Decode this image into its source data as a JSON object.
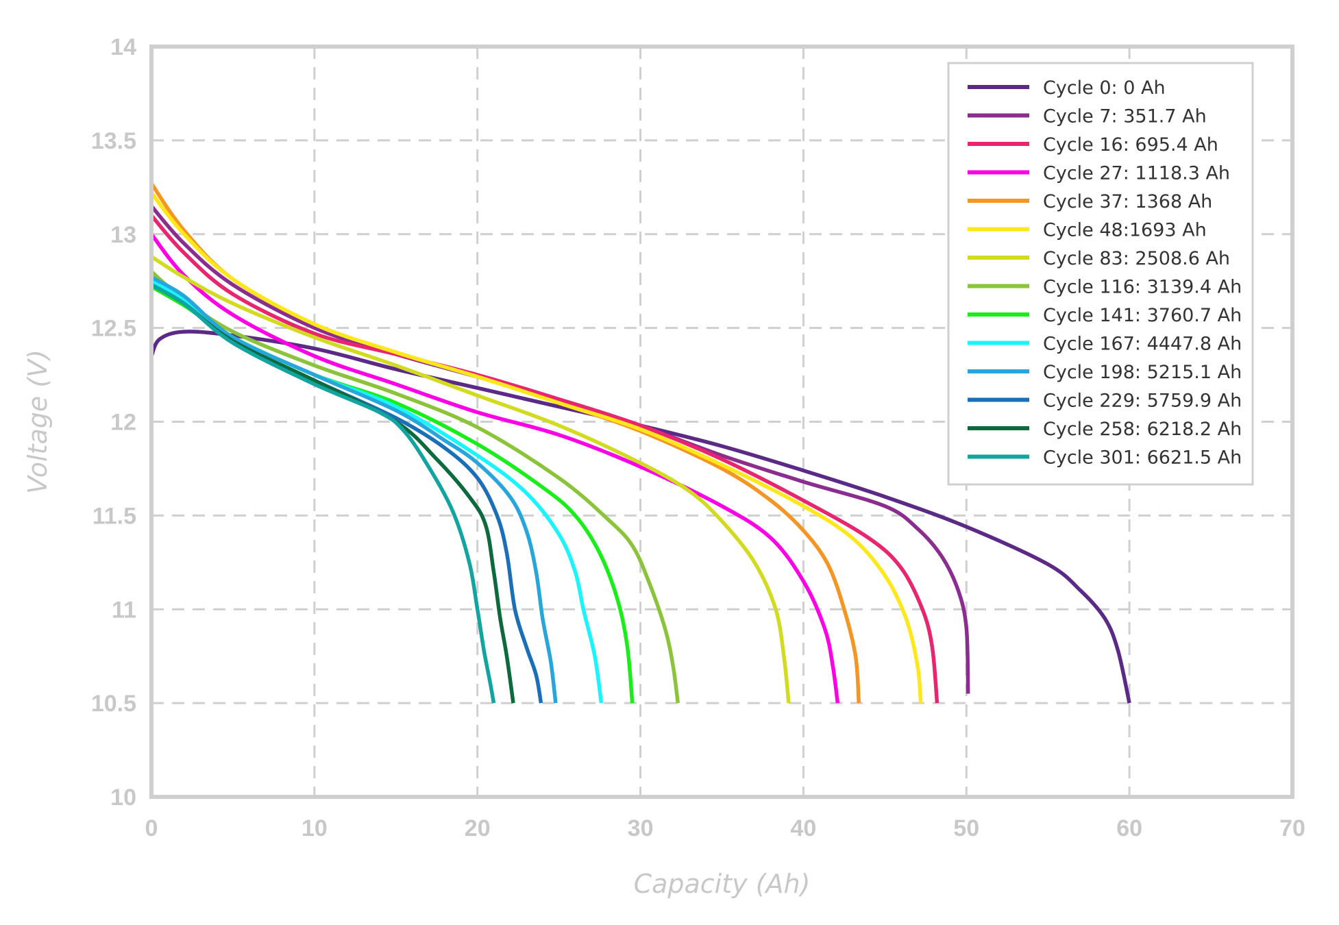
{
  "chart_data": {
    "type": "line",
    "title": "",
    "xlabel": "Capacity (Ah)",
    "ylabel": "Voltage (V)",
    "xlim": [
      0,
      70
    ],
    "ylim": [
      10,
      14
    ],
    "x_ticks": [
      0,
      10,
      20,
      30,
      40,
      50,
      60,
      70
    ],
    "y_ticks": [
      10,
      10.5,
      11,
      11.5,
      12,
      12.5,
      13,
      13.5,
      14
    ],
    "x_tick_labels": [
      "0",
      "10",
      "20",
      "30",
      "40",
      "50",
      "60",
      "70"
    ],
    "y_tick_labels": [
      "10",
      "10.5",
      "11",
      "11.5",
      "12",
      "12.5",
      "13",
      "13.5",
      "14"
    ],
    "grid": true,
    "legend_position": "top-right",
    "series": [
      {
        "name": "Cycle 0: 0 Ah",
        "color": "#5b2a86",
        "points": [
          [
            0,
            12.35
          ],
          [
            0.5,
            12.44
          ],
          [
            2,
            12.48
          ],
          [
            5,
            12.46
          ],
          [
            10,
            12.39
          ],
          [
            15,
            12.28
          ],
          [
            20,
            12.18
          ],
          [
            25,
            12.08
          ],
          [
            30,
            11.98
          ],
          [
            35,
            11.87
          ],
          [
            40,
            11.74
          ],
          [
            45,
            11.6
          ],
          [
            50,
            11.44
          ],
          [
            55,
            11.24
          ],
          [
            57,
            11.1
          ],
          [
            58.5,
            10.95
          ],
          [
            59.3,
            10.78
          ],
          [
            60,
            10.5
          ]
        ]
      },
      {
        "name": "Cycle 7: 351.7 Ah",
        "color": "#8b2d8f",
        "points": [
          [
            0,
            13.15
          ],
          [
            2,
            12.95
          ],
          [
            5,
            12.73
          ],
          [
            10,
            12.5
          ],
          [
            15,
            12.36
          ],
          [
            20,
            12.24
          ],
          [
            25,
            12.12
          ],
          [
            30,
            11.98
          ],
          [
            35,
            11.82
          ],
          [
            40,
            11.68
          ],
          [
            45,
            11.55
          ],
          [
            47,
            11.43
          ],
          [
            48.5,
            11.28
          ],
          [
            49.5,
            11.1
          ],
          [
            50,
            10.9
          ],
          [
            50.1,
            10.55
          ]
        ]
      },
      {
        "name": "Cycle 16: 695.4 Ah",
        "color": "#e8256e",
        "points": [
          [
            0,
            13.1
          ],
          [
            2,
            12.9
          ],
          [
            5,
            12.68
          ],
          [
            10,
            12.47
          ],
          [
            15,
            12.36
          ],
          [
            20,
            12.25
          ],
          [
            25,
            12.12
          ],
          [
            30,
            11.98
          ],
          [
            35,
            11.8
          ],
          [
            40,
            11.58
          ],
          [
            44,
            11.38
          ],
          [
            46,
            11.22
          ],
          [
            47.3,
            11.0
          ],
          [
            47.9,
            10.8
          ],
          [
            48.2,
            10.5
          ]
        ]
      },
      {
        "name": "Cycle 27: 1118.3 Ah",
        "color": "#ff00e6",
        "points": [
          [
            0,
            13.0
          ],
          [
            2,
            12.78
          ],
          [
            5,
            12.57
          ],
          [
            10,
            12.35
          ],
          [
            15,
            12.2
          ],
          [
            20,
            12.05
          ],
          [
            25,
            11.93
          ],
          [
            30,
            11.76
          ],
          [
            35,
            11.55
          ],
          [
            38,
            11.38
          ],
          [
            40,
            11.15
          ],
          [
            41.3,
            10.9
          ],
          [
            41.8,
            10.7
          ],
          [
            42.1,
            10.5
          ]
        ]
      },
      {
        "name": "Cycle 37: 1368 Ah",
        "color": "#f59523",
        "points": [
          [
            0,
            13.27
          ],
          [
            2,
            13.02
          ],
          [
            5,
            12.76
          ],
          [
            10,
            12.52
          ],
          [
            15,
            12.37
          ],
          [
            20,
            12.24
          ],
          [
            25,
            12.1
          ],
          [
            30,
            11.95
          ],
          [
            35,
            11.75
          ],
          [
            38,
            11.58
          ],
          [
            40,
            11.42
          ],
          [
            41.5,
            11.24
          ],
          [
            42.5,
            11.0
          ],
          [
            43.2,
            10.75
          ],
          [
            43.4,
            10.5
          ]
        ]
      },
      {
        "name": "Cycle 48:1693 Ah",
        "color": "#ffe81a",
        "points": [
          [
            0,
            13.22
          ],
          [
            2,
            13.0
          ],
          [
            5,
            12.76
          ],
          [
            10,
            12.52
          ],
          [
            15,
            12.37
          ],
          [
            20,
            12.24
          ],
          [
            25,
            12.1
          ],
          [
            30,
            11.96
          ],
          [
            35,
            11.77
          ],
          [
            40,
            11.55
          ],
          [
            43,
            11.38
          ],
          [
            45,
            11.18
          ],
          [
            46.3,
            10.95
          ],
          [
            47,
            10.7
          ],
          [
            47.2,
            10.5
          ]
        ]
      },
      {
        "name": "Cycle 83: 2508.6 Ah",
        "color": "#d2db20",
        "points": [
          [
            0,
            12.88
          ],
          [
            2,
            12.77
          ],
          [
            5,
            12.63
          ],
          [
            10,
            12.45
          ],
          [
            15,
            12.3
          ],
          [
            20,
            12.14
          ],
          [
            25,
            11.98
          ],
          [
            30,
            11.78
          ],
          [
            33,
            11.63
          ],
          [
            35,
            11.47
          ],
          [
            37,
            11.25
          ],
          [
            38.3,
            11.0
          ],
          [
            38.8,
            10.75
          ],
          [
            39.1,
            10.5
          ]
        ]
      },
      {
        "name": "Cycle 116: 3139.4 Ah",
        "color": "#8bc43a",
        "points": [
          [
            0,
            12.8
          ],
          [
            2,
            12.65
          ],
          [
            5,
            12.48
          ],
          [
            10,
            12.3
          ],
          [
            15,
            12.15
          ],
          [
            20,
            11.97
          ],
          [
            25,
            11.7
          ],
          [
            28,
            11.48
          ],
          [
            29.5,
            11.34
          ],
          [
            30.5,
            11.15
          ],
          [
            31.5,
            10.9
          ],
          [
            32,
            10.7
          ],
          [
            32.3,
            10.5
          ]
        ]
      },
      {
        "name": "Cycle 141: 3760.7 Ah",
        "color": "#1aee1a",
        "points": [
          [
            0,
            12.72
          ],
          [
            2,
            12.62
          ],
          [
            5,
            12.45
          ],
          [
            10,
            12.25
          ],
          [
            15,
            12.1
          ],
          [
            20,
            11.88
          ],
          [
            24,
            11.65
          ],
          [
            26,
            11.5
          ],
          [
            27.5,
            11.3
          ],
          [
            28.6,
            11.05
          ],
          [
            29.2,
            10.8
          ],
          [
            29.5,
            10.5
          ]
        ]
      },
      {
        "name": "Cycle 167: 4447.8 Ah",
        "color": "#19f5ff",
        "points": [
          [
            0,
            12.75
          ],
          [
            2,
            12.65
          ],
          [
            5,
            12.45
          ],
          [
            10,
            12.25
          ],
          [
            15,
            12.08
          ],
          [
            20,
            11.82
          ],
          [
            23,
            11.62
          ],
          [
            25,
            11.4
          ],
          [
            26,
            11.2
          ],
          [
            26.5,
            11.0
          ],
          [
            27.2,
            10.75
          ],
          [
            27.6,
            10.5
          ]
        ]
      },
      {
        "name": "Cycle 198: 5215.1 Ah",
        "color": "#27a6dc",
        "points": [
          [
            0,
            12.77
          ],
          [
            2,
            12.67
          ],
          [
            5,
            12.45
          ],
          [
            10,
            12.25
          ],
          [
            15,
            12.06
          ],
          [
            18,
            11.9
          ],
          [
            20,
            11.78
          ],
          [
            22,
            11.6
          ],
          [
            23,
            11.42
          ],
          [
            23.6,
            11.2
          ],
          [
            24,
            10.95
          ],
          [
            24.5,
            10.72
          ],
          [
            24.8,
            10.5
          ]
        ]
      },
      {
        "name": "Cycle 229: 5759.9 Ah",
        "color": "#1a6fb8",
        "points": [
          [
            0,
            12.73
          ],
          [
            2,
            12.63
          ],
          [
            5,
            12.43
          ],
          [
            10,
            12.22
          ],
          [
            15,
            12.02
          ],
          [
            18,
            11.86
          ],
          [
            20,
            11.7
          ],
          [
            21.2,
            11.5
          ],
          [
            21.8,
            11.3
          ],
          [
            22.3,
            11.0
          ],
          [
            23,
            10.8
          ],
          [
            23.6,
            10.65
          ],
          [
            23.9,
            10.5
          ]
        ]
      },
      {
        "name": "Cycle 258: 6218.2 Ah",
        "color": "#0d6a3c",
        "points": [
          [
            0,
            12.73
          ],
          [
            2,
            12.63
          ],
          [
            5,
            12.43
          ],
          [
            10,
            12.22
          ],
          [
            15,
            12.0
          ],
          [
            17.5,
            11.8
          ],
          [
            19.5,
            11.6
          ],
          [
            20.5,
            11.45
          ],
          [
            21.0,
            11.2
          ],
          [
            21.4,
            10.95
          ],
          [
            21.8,
            10.75
          ],
          [
            22.2,
            10.5
          ]
        ]
      },
      {
        "name": "Cycle 301: 6621.5 Ah",
        "color": "#12a4a0",
        "points": [
          [
            0,
            12.73
          ],
          [
            2,
            12.63
          ],
          [
            5,
            12.42
          ],
          [
            10,
            12.2
          ],
          [
            14,
            12.05
          ],
          [
            15.5,
            11.95
          ],
          [
            17,
            11.76
          ],
          [
            18.5,
            11.52
          ],
          [
            19.5,
            11.25
          ],
          [
            20,
            11.0
          ],
          [
            20.4,
            10.78
          ],
          [
            20.8,
            10.6
          ],
          [
            21,
            10.5
          ]
        ]
      }
    ]
  }
}
